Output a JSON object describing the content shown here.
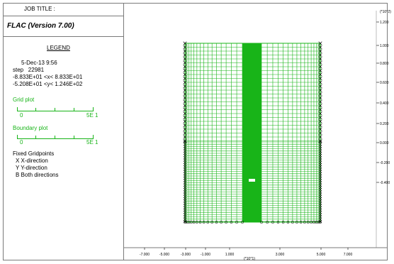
{
  "header": {
    "job_title": "JOB TITLE :",
    "program_version": "FLAC (Version 7.00)"
  },
  "legend": {
    "heading": "LEGEND",
    "date_time": "5-Dec-13  9:56",
    "step_label": "step",
    "step_value": "22981",
    "x_range": "-8.833E+01 <x<  8.833E+01",
    "y_range": "-5.208E+01 <y<  1.246E+02",
    "grid_plot": {
      "label": "Grid plot",
      "min": "0",
      "max": "5E 1"
    },
    "boundary_plot": {
      "label": "Boundary plot",
      "min": "0",
      "max": "5E 1"
    },
    "fixed_gridpoints": {
      "title": "Fixed Gridpoints",
      "items": [
        "X  X-direction",
        "Y  Y-direction",
        "B  Both directions"
      ]
    }
  },
  "axes": {
    "y_exponent": "(*10^2)",
    "x_exponent": "(*10^1)",
    "x_ticks": [
      "-7.000",
      "-5.000",
      "-3.000",
      "-1.000",
      "1.000",
      "3.000",
      "5.000",
      "7.000"
    ],
    "y_ticks": [
      "1.200",
      "1.000",
      "0.800",
      "0.600",
      "0.400",
      "0.200",
      "0.000",
      "-0.200",
      "-0.400"
    ]
  },
  "model": {
    "grid_color": "#18b418",
    "fixity_color": "#000000",
    "x_range": [
      -50,
      50
    ],
    "y_range": [
      -5,
      100
    ],
    "notes": "Mesh of an excavation profile with refinement near the centre; fixed gridpoints marked on side and bottom boundaries."
  }
}
